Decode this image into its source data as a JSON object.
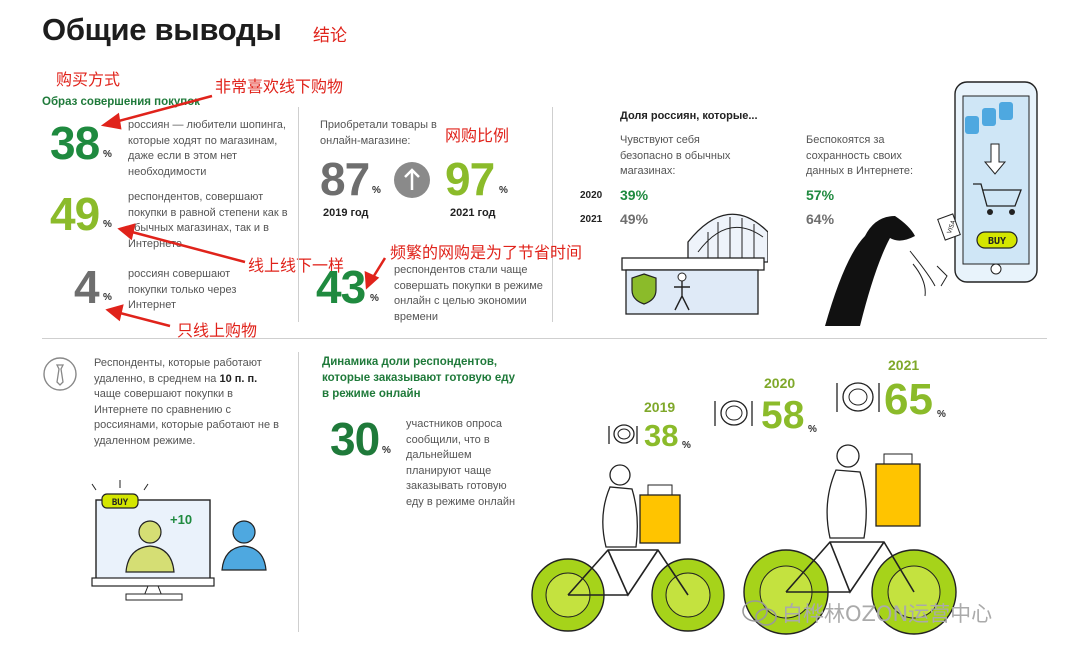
{
  "header": {
    "title": "Общие выводы",
    "title_note": "结论"
  },
  "left": {
    "note_way": "购买方式",
    "note_offline": "非常喜欢线下购物",
    "section_label": "Образ совершения покупок",
    "items": [
      {
        "value": "38",
        "unit": "%",
        "text": "россиян — любители шопинга, которые ходят по магазинам, даже если в этом нет необходимости"
      },
      {
        "value": "49",
        "unit": "%",
        "text": "респондентов, совершают покупки в равной степени как в обычных магазинах, так и в Интернете"
      },
      {
        "value": "4",
        "unit": "%",
        "text": "россиян совершают покупки только через Интернет"
      }
    ],
    "note_equal": "线上线下一样",
    "note_online_only": "只线上购物"
  },
  "middle": {
    "label": "Приобретали товары в онлайн-магазине:",
    "note_ratio": "网购比例",
    "v2019": "87",
    "y2019": "2019 год",
    "v2021": "97",
    "y2021": "2021 год",
    "unit": "%",
    "note_save_time": "频繁的网购是为了节省时间",
    "save_value": "43",
    "save_text": "респондентов стали чаще совершать покупки в режиме онлайн с целью экономии времени"
  },
  "right": {
    "heading": "Доля россиян, которые...",
    "col1_label": "Чувствуют себя безопасно в обычных магазинах:",
    "col2_label": "Беспокоятся за сохранность своих данных в Интернете:",
    "rows": [
      {
        "year": "2020",
        "safe": "39%",
        "worry": "57%"
      },
      {
        "year": "2021",
        "safe": "49%",
        "worry": "64%"
      }
    ],
    "phone_buy": "BUY",
    "card_label": "VISA"
  },
  "bottom_left": {
    "text_before": "Респонденты, которые работают удаленно, в среднем на ",
    "text_bold": "10 п. п.",
    "text_after": " чаще совершают покупки в Интернете по сравнению с россиянами, которые работают не в удаленном режиме.",
    "screen_buy": "BUY",
    "plus": "+10"
  },
  "bottom_right": {
    "heading": "Динамика доли респондентов, которые заказывают готовую еду в режиме онлайн",
    "value": "30",
    "unit": "%",
    "text": "участников опроса сообщили, что в дальнейшем планируют чаще заказывать готовую еду в режиме онлайн",
    "years": [
      {
        "year": "2019",
        "value": "38",
        "unit": "%"
      },
      {
        "year": "2020",
        "value": "58",
        "unit": "%"
      },
      {
        "year": "2021",
        "value": "65",
        "unit": "%"
      }
    ],
    "watermark": "白桦林OZON运营中心"
  }
}
